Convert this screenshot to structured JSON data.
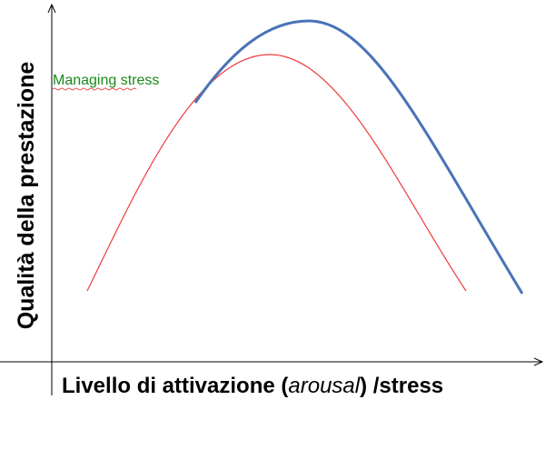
{
  "y_axis_label": "Qualità della prestazione",
  "x_axis_label": {
    "before": "Livello di attivazione (",
    "italic": "arousal",
    "after": ") /stress"
  },
  "annotation": "Managing stress"
}
